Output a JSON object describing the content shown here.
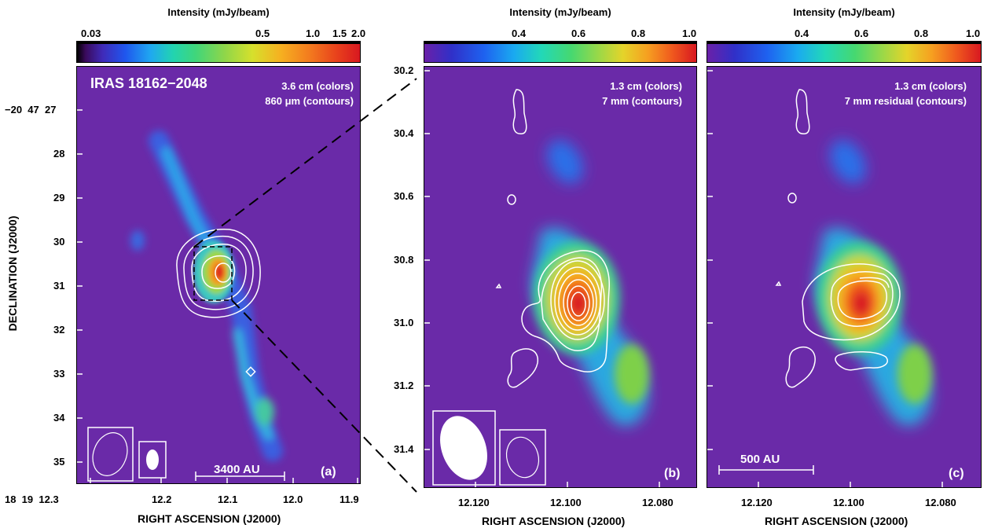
{
  "colorbar_title": "Intensity (mJy/beam)",
  "colorbars": {
    "a": [
      "0.03",
      "0.5",
      "1.0",
      "1.5",
      "2.0"
    ],
    "b": [
      "0.4",
      "0.6",
      "0.8",
      "1.0"
    ],
    "c": [
      "0.4",
      "0.6",
      "0.8",
      "1.0"
    ]
  },
  "panel_a": {
    "source": "IRAS 18162−2048",
    "legend_line1": "3.6 cm (colors)",
    "legend_line2": "860 μm (contours)",
    "scalebar": "3400 AU",
    "label": "(a)",
    "dec_ticks": [
      "−20  47  27",
      "28",
      "29",
      "30",
      "31",
      "32",
      "33",
      "34",
      "35"
    ],
    "ra_ticks": [
      "18  19  12.3",
      "12.2",
      "12.1",
      "12.0",
      "11.9"
    ]
  },
  "panel_b": {
    "legend_line1": "1.3 cm (colors)",
    "legend_line2": "7 mm (contours)",
    "label": "(b)",
    "dec_ticks": [
      "30.2",
      "30.4",
      "30.6",
      "30.8",
      "31.0",
      "31.2",
      "31.4"
    ],
    "ra_ticks": [
      "12.120",
      "12.100",
      "12.080"
    ]
  },
  "panel_c": {
    "legend_line1": "1.3 cm (colors)",
    "legend_line2": "7 mm residual (contours)",
    "scalebar": "500 AU",
    "label": "(c)",
    "ra_ticks": [
      "12.120",
      "12.100",
      "12.080"
    ]
  },
  "xlabel": "RIGHT ASCENSION (J2000)",
  "ylabel": "DECLINATION (J2000)",
  "colors": {
    "background": "#6a2aa8",
    "contour": "#ffffff"
  }
}
